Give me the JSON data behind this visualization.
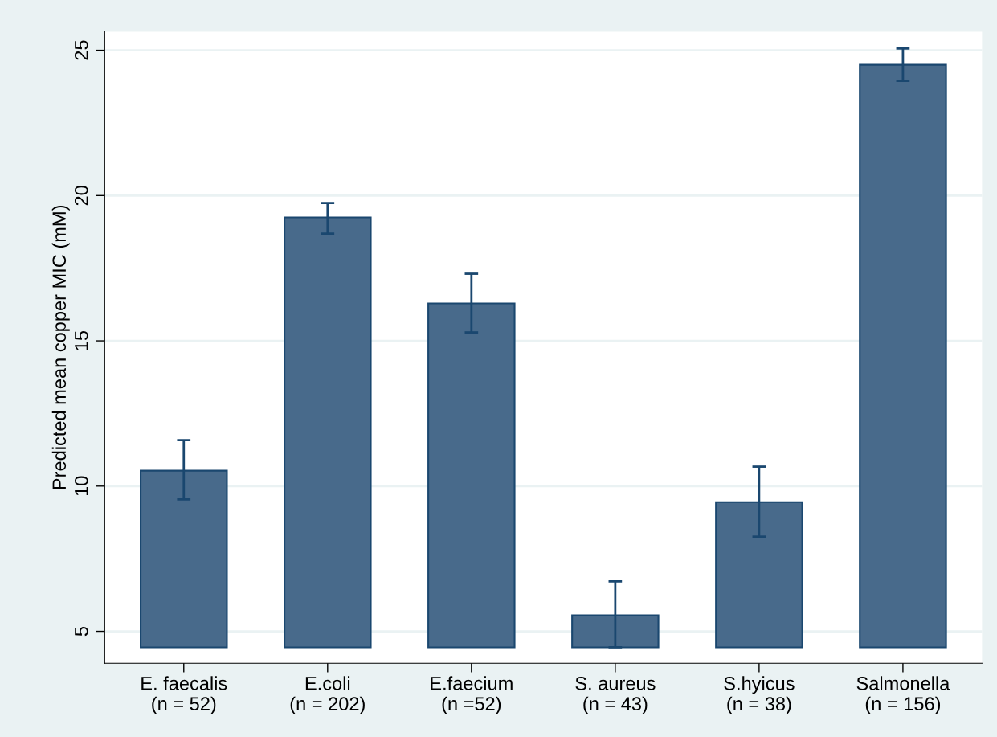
{
  "chart_data": {
    "type": "bar",
    "ylabel": "Predicted mean copper MIC (mM)",
    "categories": [
      "E. faecalis\n(n = 52)",
      "E.coli\n(n = 202)",
      "E.faecium\n(n =52)",
      "S. aureus\n(n = 43)",
      "S.hyicus\n(n = 38)",
      "Salmonella\n(n = 156)"
    ],
    "base": [
      4.45,
      4.45,
      4.45,
      4.45,
      4.45,
      4.45
    ],
    "values": [
      6.08,
      14.8,
      11.84,
      1.1,
      5.0,
      20.05
    ],
    "errors": [
      [
        9.54,
        11.58
      ],
      [
        18.69,
        19.74
      ],
      [
        15.29,
        17.31
      ],
      [
        4.45,
        6.72
      ],
      [
        8.26,
        10.67
      ],
      [
        23.95,
        25.06
      ]
    ],
    "color": "#486a8b",
    "ylim": [
      3.9,
      25.64
    ],
    "yticks": [
      5,
      10,
      15,
      20,
      25
    ],
    "grid": "y",
    "legend": false
  }
}
